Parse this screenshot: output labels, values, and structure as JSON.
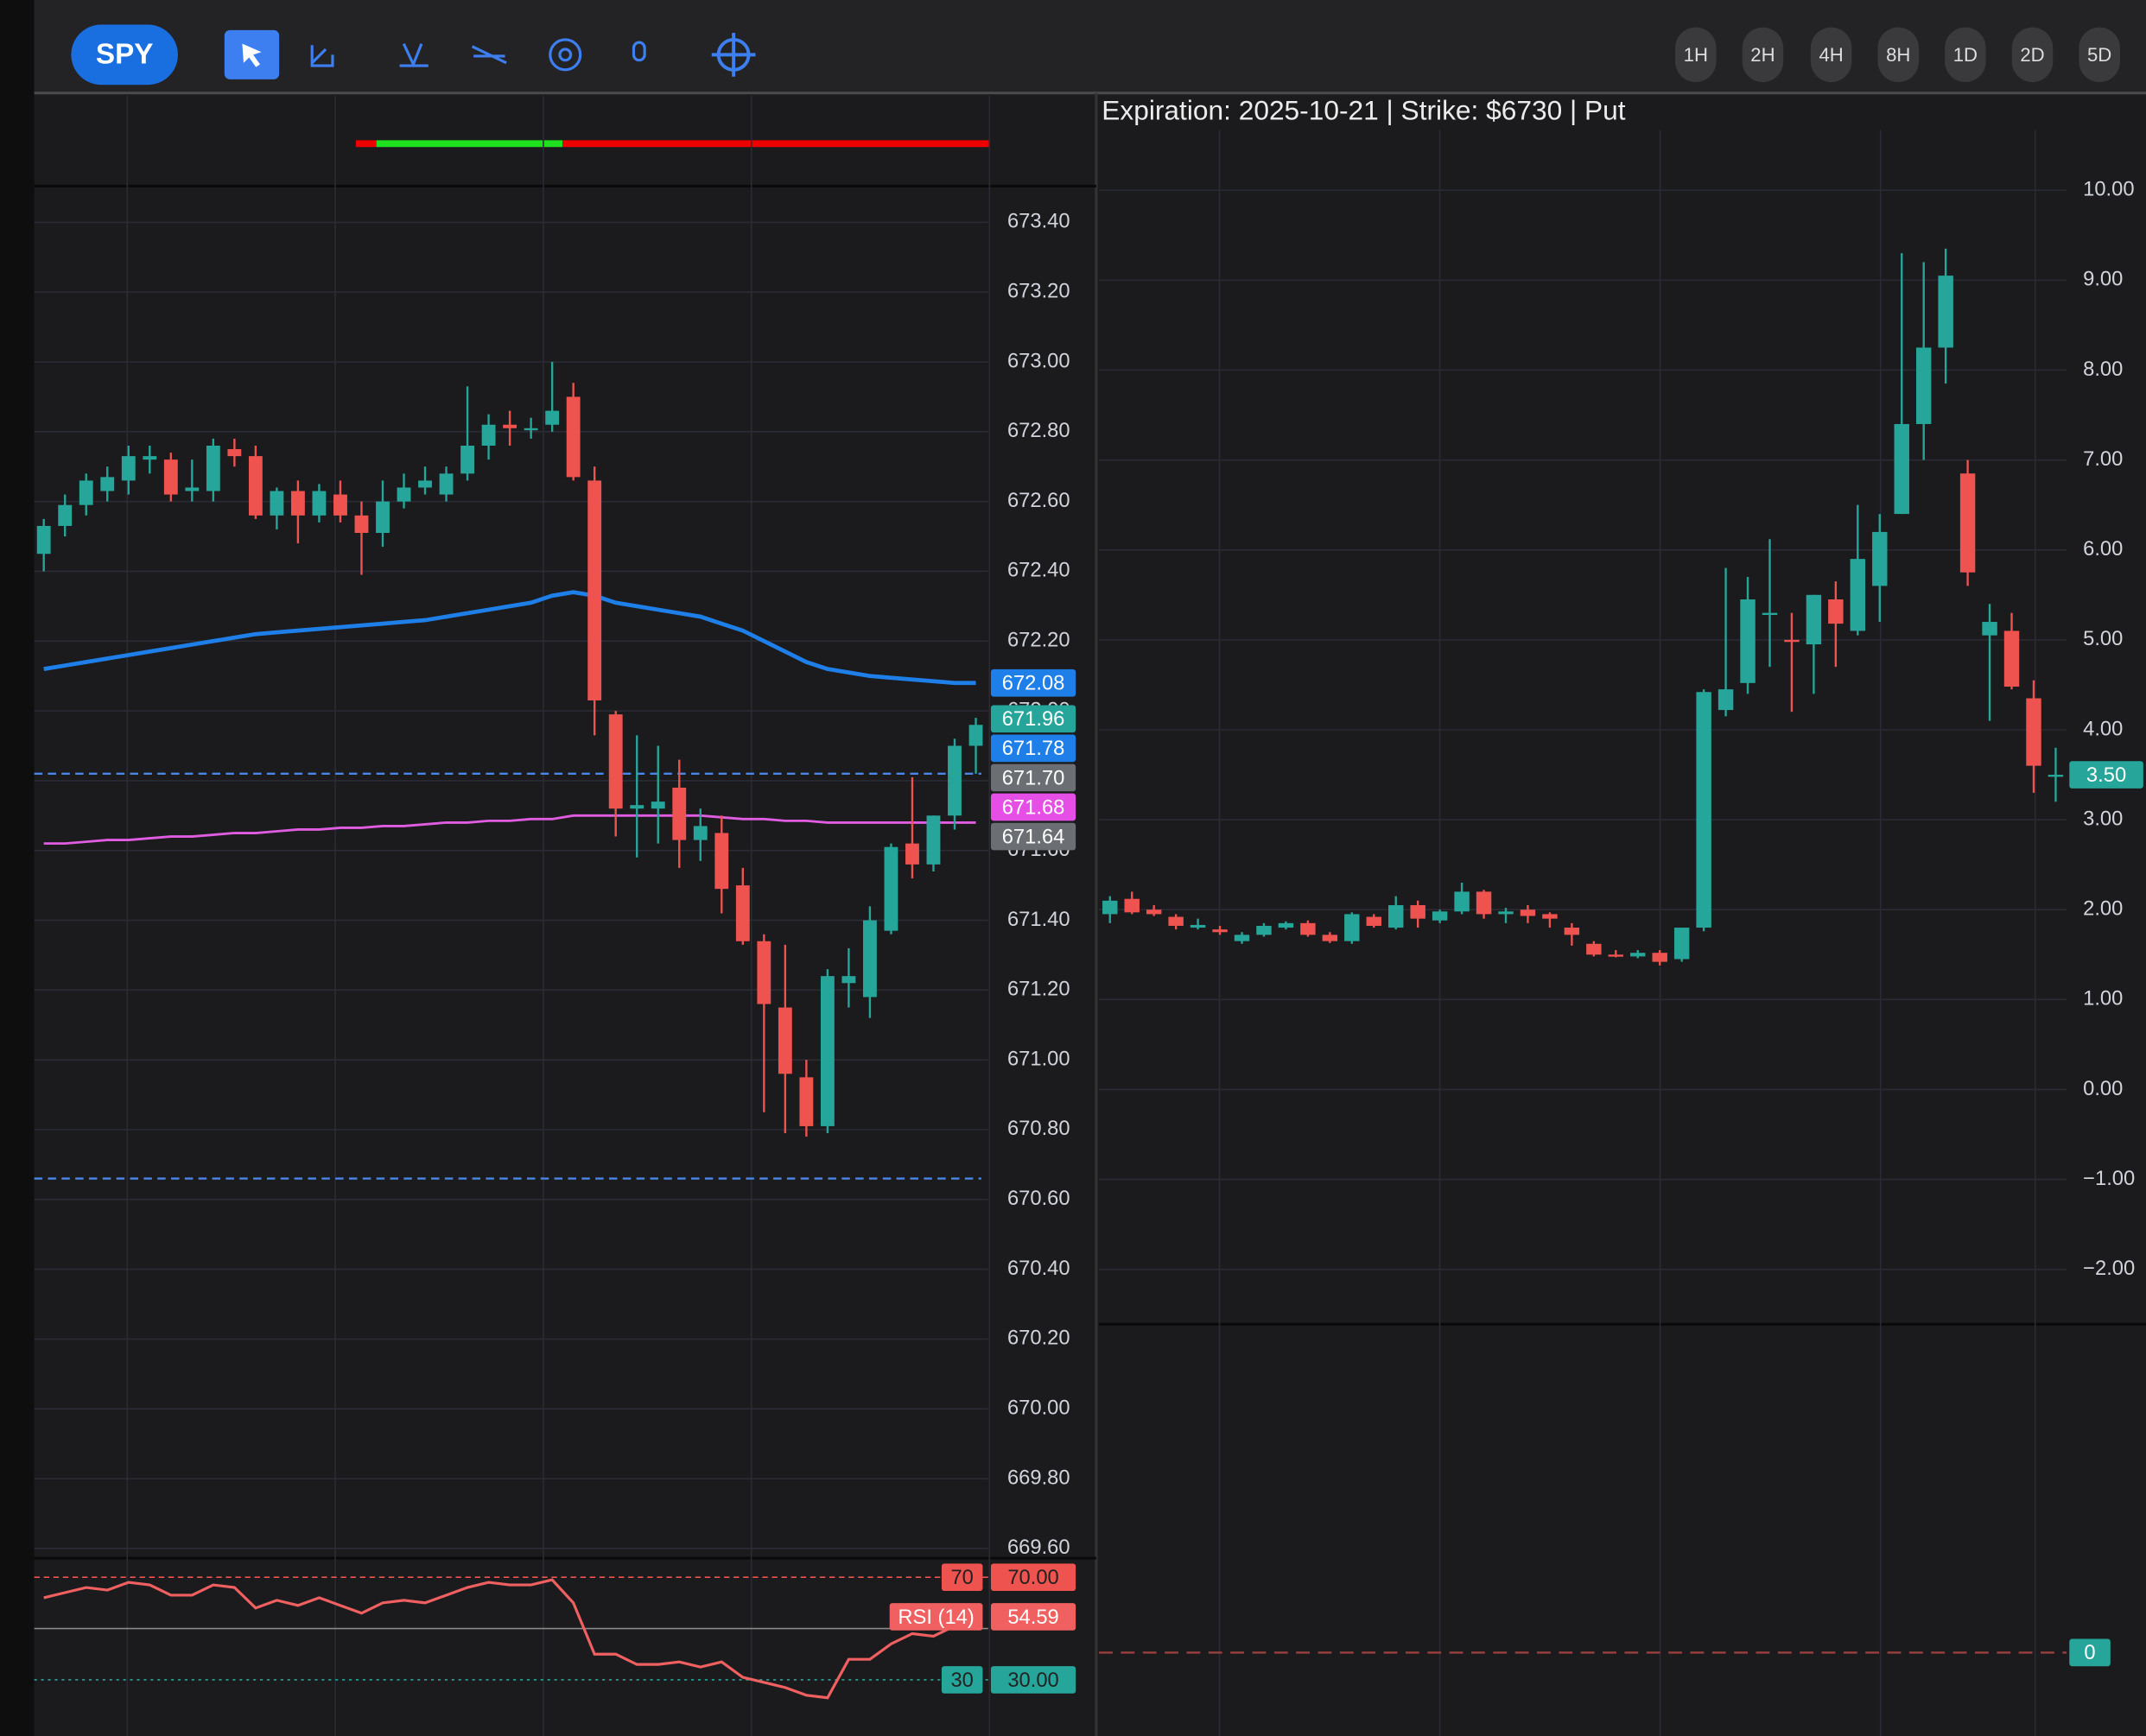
{
  "toolbar": {
    "symbol": "SPY",
    "timeframes": [
      "1H",
      "2H",
      "4H",
      "8H",
      "1D",
      "2D",
      "5D"
    ]
  },
  "chart_data": [
    {
      "type": "candlestick",
      "up_color": "#26a69a",
      "down_color": "#ef5350",
      "grid": true,
      "ylim": [
        669.58,
        673.5
      ],
      "yticks": [
        {
          "value": 669.6,
          "label": "669.60"
        },
        {
          "value": 669.8,
          "label": "669.80"
        },
        {
          "value": 670,
          "label": "670.00"
        },
        {
          "value": 670.2,
          "label": "670.20"
        },
        {
          "value": 670.4,
          "label": "670.40"
        },
        {
          "value": 670.6,
          "label": "670.60"
        },
        {
          "value": 670.8,
          "label": "670.80"
        },
        {
          "value": 671,
          "label": "671.00"
        },
        {
          "value": 671.2,
          "label": "671.20"
        },
        {
          "value": 671.4,
          "label": "671.40"
        },
        {
          "value": 671.6,
          "label": "671.60"
        },
        {
          "value": 671.8,
          "label": "671.80"
        },
        {
          "value": 672,
          "label": "672.00"
        },
        {
          "value": 672.2,
          "label": "672.20"
        },
        {
          "value": 672.4,
          "label": "672.40"
        },
        {
          "value": 672.6,
          "label": "672.60"
        },
        {
          "value": 672.8,
          "label": "672.80"
        },
        {
          "value": 673,
          "label": "673.00"
        },
        {
          "value": 673.2,
          "label": "673.20"
        },
        {
          "value": 673.4,
          "label": "673.40"
        }
      ],
      "open": [
        672.45,
        672.53,
        672.59,
        672.63,
        672.66,
        672.72,
        672.72,
        672.63,
        672.63,
        672.75,
        672.73,
        672.56,
        672.63,
        672.56,
        672.62,
        672.56,
        672.51,
        672.6,
        672.64,
        672.62,
        672.68,
        672.76,
        672.82,
        672.81,
        672.82,
        672.9,
        672.66,
        671.99,
        671.72,
        671.72,
        671.78,
        671.63,
        671.65,
        671.5,
        671.34,
        671.15,
        670.95,
        670.81,
        671.22,
        671.18,
        671.37,
        671.62,
        671.56,
        671.7,
        671.9
      ],
      "high": [
        672.55,
        672.62,
        672.68,
        672.7,
        672.76,
        672.76,
        672.74,
        672.72,
        672.78,
        672.78,
        672.76,
        672.64,
        672.66,
        672.65,
        672.66,
        672.6,
        672.66,
        672.68,
        672.7,
        672.7,
        672.93,
        672.85,
        672.86,
        672.84,
        673.0,
        672.94,
        672.7,
        672.0,
        671.93,
        671.9,
        671.86,
        671.72,
        671.7,
        671.55,
        671.36,
        671.33,
        671.0,
        671.26,
        671.32,
        671.44,
        671.62,
        671.81,
        671.7,
        671.92,
        671.98
      ],
      "low": [
        672.4,
        672.5,
        672.56,
        672.6,
        672.62,
        672.68,
        672.6,
        672.6,
        672.6,
        672.7,
        672.55,
        672.52,
        672.48,
        672.54,
        672.54,
        672.39,
        672.47,
        672.58,
        672.62,
        672.6,
        672.66,
        672.72,
        672.76,
        672.78,
        672.8,
        672.66,
        671.93,
        671.64,
        671.58,
        671.62,
        671.55,
        671.57,
        671.42,
        671.33,
        670.85,
        670.79,
        670.78,
        670.79,
        671.15,
        671.12,
        671.36,
        671.52,
        671.54,
        671.66,
        671.82
      ],
      "close": [
        672.53,
        672.59,
        672.66,
        672.67,
        672.73,
        672.73,
        672.62,
        672.64,
        672.76,
        672.73,
        672.56,
        672.63,
        672.56,
        672.63,
        672.56,
        672.51,
        672.6,
        672.64,
        672.66,
        672.68,
        672.76,
        672.82,
        672.81,
        672.81,
        672.86,
        672.67,
        672.03,
        671.72,
        671.73,
        671.74,
        671.63,
        671.67,
        671.49,
        671.34,
        671.16,
        670.96,
        670.81,
        671.24,
        671.24,
        671.4,
        671.61,
        671.56,
        671.7,
        671.9,
        671.96
      ],
      "series": [
        {
          "color": "#1e7fe8",
          "values": [
            672.12,
            672.13,
            672.14,
            672.15,
            672.16,
            672.17,
            672.18,
            672.19,
            672.2,
            672.21,
            672.22,
            672.225,
            672.23,
            672.235,
            672.24,
            672.245,
            672.25,
            672.255,
            672.26,
            672.27,
            672.28,
            672.29,
            672.3,
            672.31,
            672.33,
            672.34,
            672.33,
            672.31,
            672.3,
            672.29,
            672.28,
            672.27,
            672.25,
            672.23,
            672.2,
            672.17,
            672.14,
            672.12,
            672.11,
            672.1,
            672.095,
            672.09,
            672.085,
            672.08,
            672.08
          ]
        },
        {
          "color": "#e05ce0",
          "values": [
            671.62,
            671.62,
            671.625,
            671.63,
            671.63,
            671.635,
            671.64,
            671.64,
            671.645,
            671.65,
            671.65,
            671.655,
            671.66,
            671.66,
            671.665,
            671.665,
            671.67,
            671.67,
            671.675,
            671.68,
            671.68,
            671.685,
            671.685,
            671.69,
            671.69,
            671.7,
            671.7,
            671.7,
            671.7,
            671.7,
            671.7,
            671.7,
            671.695,
            671.69,
            671.69,
            671.685,
            671.685,
            671.68,
            671.68,
            671.68,
            671.68,
            671.68,
            671.68,
            671.68,
            671.68
          ]
        }
      ],
      "levels": [
        671.82,
        670.66
      ],
      "price_tags": [
        {
          "value": 672.08,
          "color": "#1e7fe8"
        },
        {
          "value": 671.96,
          "color": "#26a69a"
        },
        {
          "value": 671.78,
          "color": "#1e7fe8"
        },
        {
          "value": 671.7,
          "label": "671.70",
          "color": "#6b6e73"
        },
        {
          "value": 671.68,
          "color": "#e54fe5"
        },
        {
          "value": 671.64,
          "color": "#6b6e73"
        }
      ],
      "rsi": {
        "type": "line",
        "name": "RSI (14)",
        "color": "#f06060",
        "ylim": [
          8.1,
          76.9
        ],
        "values": [
          62,
          64,
          66,
          65,
          68,
          67,
          63,
          63,
          67,
          66,
          58,
          61,
          59,
          62,
          59,
          56,
          60,
          61,
          60,
          63,
          66,
          68,
          67,
          67,
          69,
          60,
          40,
          40,
          36,
          36,
          37,
          35,
          37,
          31,
          29,
          27,
          24,
          23,
          38,
          38,
          44,
          48,
          47,
          51,
          54.59
        ],
        "levels": [
          {
            "value": 70,
            "label": "70.00",
            "color": "#ef5350"
          },
          {
            "value": 30,
            "label": "30.00",
            "color": "#26a69a"
          }
        ]
      }
    },
    {
      "type": "candlestick",
      "title": "Expiration: 2025-10-21 | Strike: $6730 | Put",
      "up_color": "#26a69a",
      "down_color": "#ef5350",
      "grid": true,
      "ylim": [
        -2.61,
        10.67
      ],
      "yticks": [
        {
          "value": -2,
          "label": "−2.00"
        },
        {
          "value": -1,
          "label": "−1.00"
        },
        {
          "value": 0,
          "label": "0.00"
        },
        {
          "value": 1,
          "label": "1.00"
        },
        {
          "value": 2,
          "label": "2.00"
        },
        {
          "value": 3,
          "label": "3.00"
        },
        {
          "value": 4,
          "label": "4.00"
        },
        {
          "value": 5,
          "label": "5.00"
        },
        {
          "value": 6,
          "label": "6.00"
        },
        {
          "value": 7,
          "label": "7.00"
        },
        {
          "value": 8,
          "label": "8.00"
        },
        {
          "value": 9,
          "label": "9.00"
        },
        {
          "value": 10,
          "label": "10.00"
        }
      ],
      "open": [
        1.95,
        2.12,
        2.0,
        1.92,
        1.8,
        1.78,
        1.65,
        1.72,
        1.8,
        1.85,
        1.72,
        1.65,
        1.92,
        1.8,
        2.05,
        1.88,
        1.98,
        2.2,
        1.95,
        2.0,
        1.95,
        1.8,
        1.62,
        1.5,
        1.48,
        1.52,
        1.45,
        1.8,
        4.22,
        4.52,
        5.28,
        5.0,
        4.95,
        5.45,
        5.1,
        5.6,
        6.4,
        7.4,
        8.25,
        6.85,
        5.05,
        5.1,
        4.35,
        3.5
      ],
      "high": [
        2.15,
        2.2,
        2.05,
        1.95,
        1.9,
        1.82,
        1.75,
        1.85,
        1.87,
        1.88,
        1.75,
        1.97,
        1.95,
        2.15,
        2.1,
        2.0,
        2.3,
        2.22,
        2.02,
        2.05,
        1.97,
        1.85,
        1.65,
        1.55,
        1.55,
        1.55,
        1.8,
        4.45,
        5.8,
        5.7,
        6.12,
        5.3,
        5.5,
        5.65,
        6.5,
        6.4,
        9.3,
        9.2,
        9.35,
        7.0,
        5.4,
        5.3,
        4.55,
        3.8
      ],
      "low": [
        1.85,
        1.95,
        1.93,
        1.78,
        1.78,
        1.72,
        1.62,
        1.7,
        1.78,
        1.7,
        1.63,
        1.62,
        1.8,
        1.78,
        1.8,
        1.85,
        1.95,
        1.9,
        1.85,
        1.85,
        1.8,
        1.6,
        1.48,
        1.47,
        1.46,
        1.38,
        1.42,
        1.76,
        4.15,
        4.4,
        4.7,
        4.2,
        4.4,
        4.7,
        5.05,
        5.2,
        6.4,
        7.0,
        7.85,
        5.6,
        4.1,
        4.45,
        3.3,
        3.2
      ],
      "close": [
        2.1,
        1.97,
        1.95,
        1.82,
        1.83,
        1.75,
        1.72,
        1.82,
        1.85,
        1.72,
        1.65,
        1.95,
        1.82,
        2.05,
        1.9,
        1.98,
        2.2,
        1.95,
        1.98,
        1.93,
        1.9,
        1.72,
        1.5,
        1.48,
        1.52,
        1.42,
        1.8,
        4.42,
        4.45,
        5.45,
        5.3,
        4.98,
        5.5,
        5.18,
        5.9,
        6.2,
        7.4,
        8.25,
        9.05,
        5.75,
        5.2,
        4.48,
        3.6,
        3.5
      ],
      "price_tags": [
        {
          "value": 3.5,
          "label": "3.50",
          "color": "#26a69a"
        }
      ],
      "volume": {
        "yticks": [
          0
        ],
        "color": "#26a69a"
      }
    }
  ]
}
